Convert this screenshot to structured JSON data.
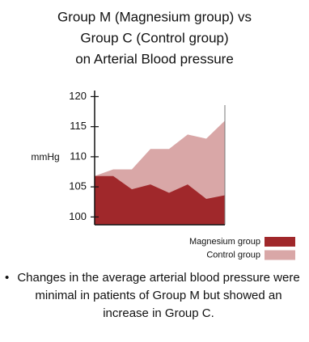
{
  "chart_data": {
    "type": "area",
    "title": [
      "Group M (Magnesium group) vs",
      "Group C (Control group)",
      "on Arterial Blood pressure"
    ],
    "y_label": "mmHg",
    "categories": [
      null,
      null,
      null,
      null,
      null,
      null,
      null,
      null
    ],
    "series": [
      {
        "name": "Control group",
        "color": "#d9a7a7",
        "values": [
          106.8,
          107.9,
          107.9,
          111.3,
          111.3,
          113.7,
          113.0,
          116.0
        ]
      },
      {
        "name": "Magnesium group",
        "color": "#a0282b",
        "values": [
          106.8,
          106.8,
          104.6,
          105.4,
          104.0,
          105.4,
          103.0,
          103.6
        ]
      }
    ],
    "ylim": [
      98.7,
      121
    ],
    "yticks": [
      100,
      105,
      110,
      115,
      120
    ],
    "legend_order": [
      1,
      0
    ],
    "note": "Changes in the average arterial blood pressure were minimal in patients of Group M but showed an increase in Group C."
  }
}
